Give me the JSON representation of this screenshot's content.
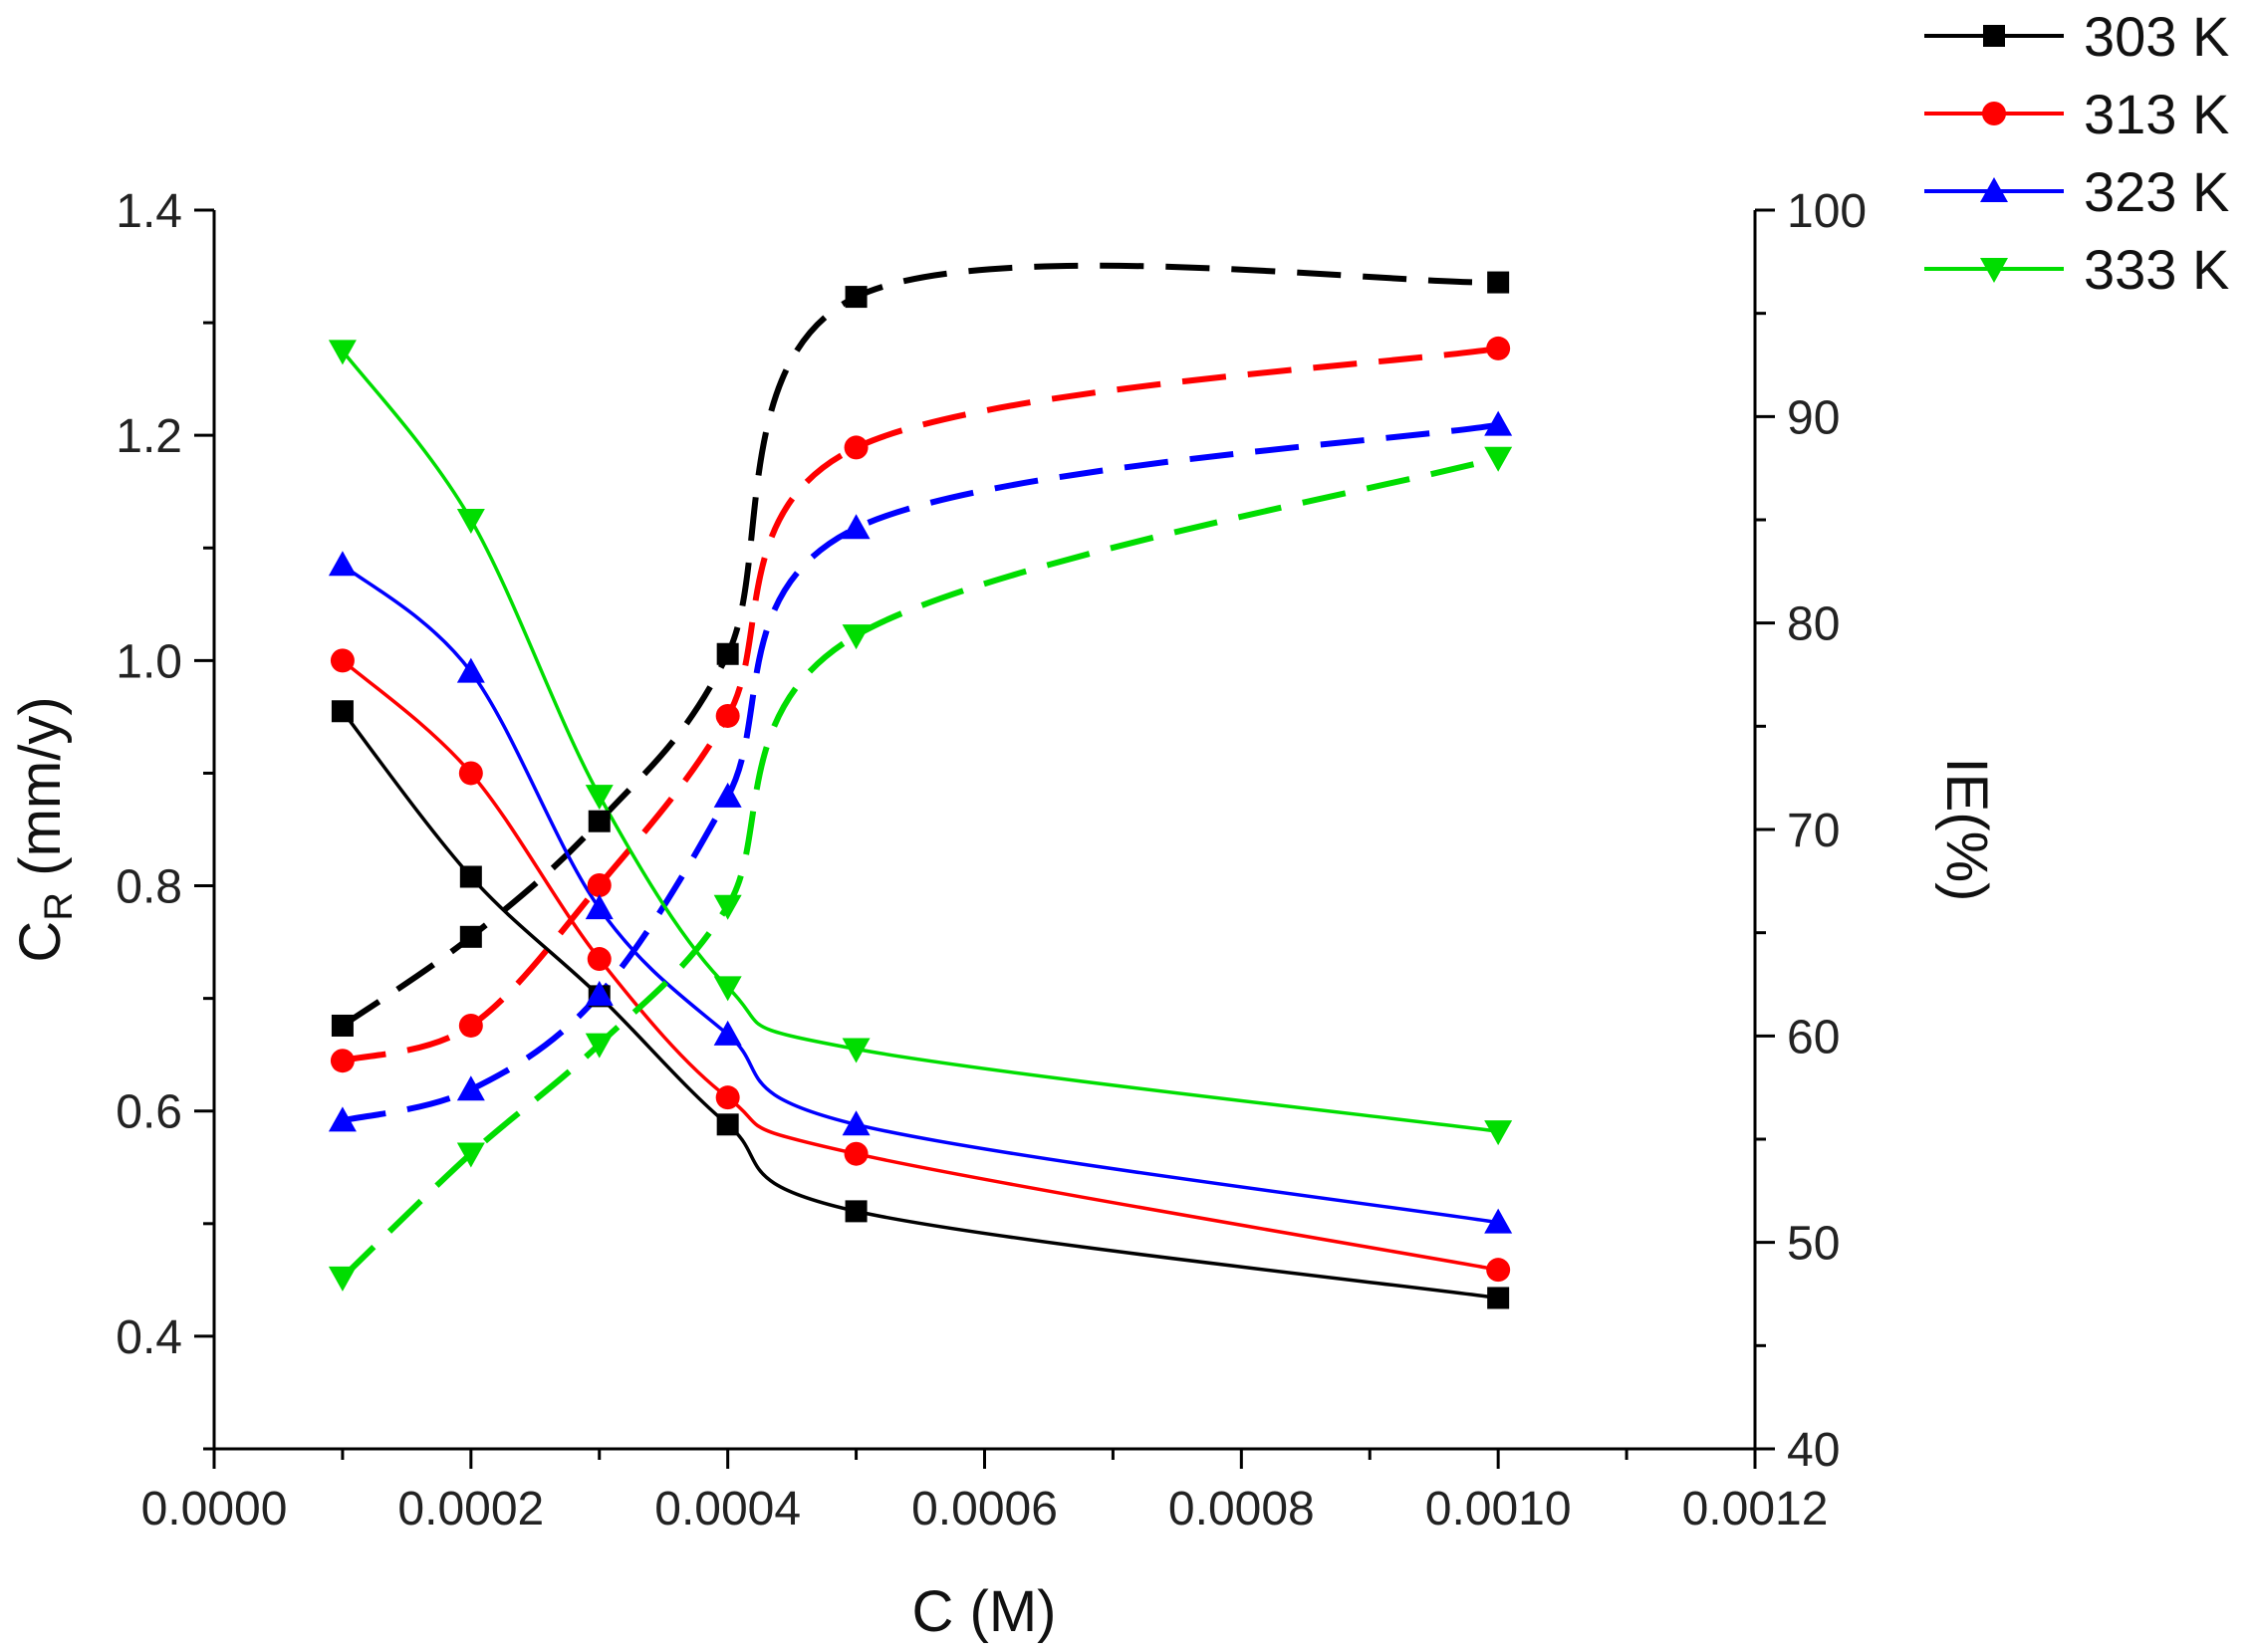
{
  "chart_data": {
    "type": "scatter",
    "x": [
      0.0001,
      0.0002,
      0.0003,
      0.0004,
      0.0005,
      0.001
    ],
    "xlabel": "C (M)",
    "xlim": [
      0,
      0.0012
    ],
    "xticks": [
      "0.0000",
      "0.0002",
      "0.0004",
      "0.0006",
      "0.0008",
      "0.0010",
      "0.0012"
    ],
    "ylabel": {
      "main": "C",
      "sub": "R",
      "rest": " (mm/y)"
    },
    "ylim": [
      0.3,
      1.4
    ],
    "yticks": [
      "0.4",
      "0.6",
      "0.8",
      "1.0",
      "1.2",
      "1.4"
    ],
    "y2label": "IE(%)",
    "y2lim": [
      40,
      100
    ],
    "y2ticks": [
      "40",
      "50",
      "60",
      "70",
      "80",
      "90",
      "100"
    ],
    "series": [
      {
        "name": "303 K",
        "color": "#000000",
        "marker": "square",
        "cr": [
          0.955,
          0.808,
          0.702,
          0.588,
          0.511,
          0.434
        ],
        "ie": [
          60.5,
          64.8,
          70.4,
          78.5,
          95.8,
          96.5
        ]
      },
      {
        "name": "313 K",
        "color": "#ff0000",
        "marker": "circle",
        "cr": [
          1.0,
          0.9,
          0.735,
          0.612,
          0.562,
          0.459
        ],
        "ie": [
          58.8,
          60.5,
          67.3,
          75.5,
          88.5,
          93.3
        ]
      },
      {
        "name": "323 K",
        "color": "#0000ff",
        "marker": "triangle-up",
        "cr": [
          1.085,
          0.99,
          0.78,
          0.668,
          0.588,
          0.501
        ],
        "ie": [
          55.9,
          57.4,
          62.0,
          71.6,
          84.6,
          89.6
        ]
      },
      {
        "name": "333 K",
        "color": "#00dd00",
        "marker": "triangle-down",
        "cr": [
          1.275,
          1.125,
          0.88,
          0.71,
          0.655,
          0.582
        ],
        "ie": [
          48.3,
          54.3,
          59.6,
          66.3,
          79.4,
          88.0
        ]
      }
    ]
  }
}
